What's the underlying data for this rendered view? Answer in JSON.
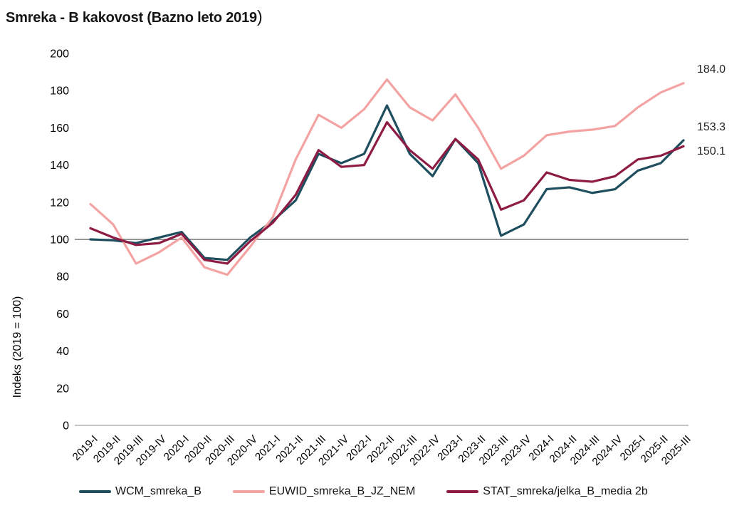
{
  "title": {
    "main": "Smreka - B kakovost (Bazno leto 2019",
    "suffix": ")"
  },
  "colors": {
    "axis_line": "#B3B3B3",
    "reference_line": "#737373",
    "tick_text": "#000000",
    "end_label_text": "#262626"
  },
  "chart_data": {
    "type": "line",
    "title": "Smreka - B kakovost (Bazno leto 2019)",
    "xlabel": "",
    "ylabel": "Indeks (2019 = 100)",
    "ylim": [
      0,
      200
    ],
    "y_ticks": [
      0,
      20,
      40,
      60,
      80,
      100,
      120,
      140,
      160,
      180,
      200
    ],
    "reference_line": 100,
    "grid": "single horizontal reference line at 100; bottom axis line only",
    "legend_position": "bottom",
    "categories": [
      "2019-I",
      "2019-II",
      "2019-III",
      "2019-IV",
      "2020-I",
      "2020-II",
      "2020-III",
      "2020-IV",
      "2021-I",
      "2021-II",
      "2021-III",
      "2021-IV",
      "2022-I",
      "2022-II",
      "2022-III",
      "2022-IV",
      "2023-I",
      "2023-II",
      "2023-III",
      "2023-IV",
      "2024-I",
      "2024-II",
      "2024-III",
      "2024-IV",
      "2025-I",
      "2025-II",
      "2025-III"
    ],
    "series": [
      {
        "name": "WCM_smreka_B",
        "color": "#1F4E5F",
        "end_label": "153.3",
        "values": [
          100,
          99.5,
          98,
          101,
          104,
          90,
          89,
          101,
          110,
          121,
          146,
          141,
          146,
          172,
          146,
          134,
          154,
          141,
          102,
          108,
          127,
          128,
          125,
          127,
          137,
          141,
          153.3
        ]
      },
      {
        "name": "EUWID_smreka_B_JZ_NEM",
        "color": "#F4A3A3",
        "end_label": "184.0",
        "values": [
          119,
          108,
          87,
          93,
          101,
          85,
          81,
          96,
          112,
          143,
          167,
          160,
          170,
          186,
          171,
          164,
          178,
          160,
          138,
          145,
          156,
          158,
          159,
          161,
          171,
          179,
          184
        ]
      },
      {
        "name": "STAT_smreka/jelka_B_media 2b",
        "color": "#8E1B43",
        "end_label": "150.1",
        "values": [
          106,
          101,
          97,
          98,
          103,
          89,
          87,
          99,
          109,
          124,
          148,
          139,
          140,
          163,
          148,
          138,
          154,
          143,
          116,
          121,
          136,
          132,
          131,
          134,
          143,
          145,
          150.1
        ]
      }
    ]
  }
}
